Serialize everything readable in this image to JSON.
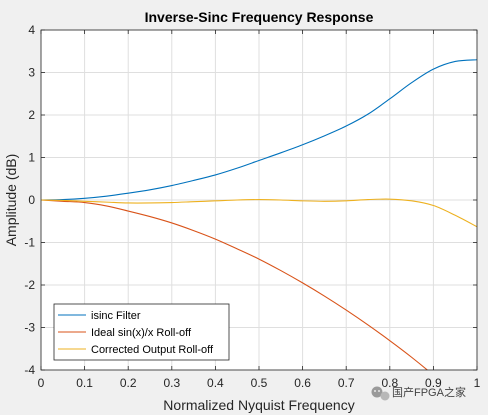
{
  "chart_data": {
    "type": "line",
    "title": "Inverse-Sinc Frequency Response",
    "xlabel": "Normalized Nyquist Frequency",
    "ylabel": "Amplitude (dB)",
    "xlim": [
      0,
      1
    ],
    "ylim": [
      -4,
      4
    ],
    "xticks": [
      0,
      0.1,
      0.2,
      0.3,
      0.4,
      0.5,
      0.6,
      0.7,
      0.8,
      0.9,
      1
    ],
    "xtick_labels": [
      "0",
      "0.1",
      "0.2",
      "0.3",
      "0.4",
      "0.5",
      "0.6",
      "0.7",
      "0.8",
      "0.9",
      "1"
    ],
    "yticks": [
      -4,
      -3,
      -2,
      -1,
      0,
      1,
      2,
      3,
      4
    ],
    "ytick_labels": [
      "-4",
      "-3",
      "-2",
      "-1",
      "0",
      "1",
      "2",
      "3",
      "4"
    ],
    "grid": true,
    "legend_position": "bottom-left",
    "x": [
      0,
      0.05,
      0.1,
      0.15,
      0.2,
      0.25,
      0.3,
      0.35,
      0.4,
      0.45,
      0.5,
      0.55,
      0.6,
      0.65,
      0.7,
      0.75,
      0.8,
      0.85,
      0.9,
      0.95,
      1.0
    ],
    "series": [
      {
        "name": "isinc Filter",
        "color": "#0072BD",
        "values": [
          0,
          0.01,
          0.04,
          0.09,
          0.16,
          0.24,
          0.34,
          0.46,
          0.59,
          0.75,
          0.93,
          1.11,
          1.3,
          1.51,
          1.74,
          2.02,
          2.38,
          2.76,
          3.08,
          3.26,
          3.3
        ]
      },
      {
        "name": "Ideal sin(x)/x Roll-off",
        "color": "#D95319",
        "values": [
          0,
          -0.03,
          -0.06,
          -0.14,
          -0.26,
          -0.39,
          -0.54,
          -0.72,
          -0.92,
          -1.15,
          -1.39,
          -1.66,
          -1.95,
          -2.26,
          -2.59,
          -2.94,
          -3.31,
          -3.7,
          -4.12,
          -4.57,
          -4.03
        ]
      },
      {
        "name": "Corrected Output Roll-off",
        "color": "#EDB120",
        "values": [
          0,
          -0.01,
          -0.03,
          -0.05,
          -0.07,
          -0.07,
          -0.06,
          -0.04,
          -0.02,
          0.0,
          0.01,
          0.0,
          -0.02,
          -0.03,
          -0.02,
          0.01,
          0.02,
          -0.02,
          -0.13,
          -0.36,
          -0.63
        ]
      }
    ]
  },
  "watermark": {
    "text": "国产FPGA之家",
    "icon": "wechat-icon"
  }
}
